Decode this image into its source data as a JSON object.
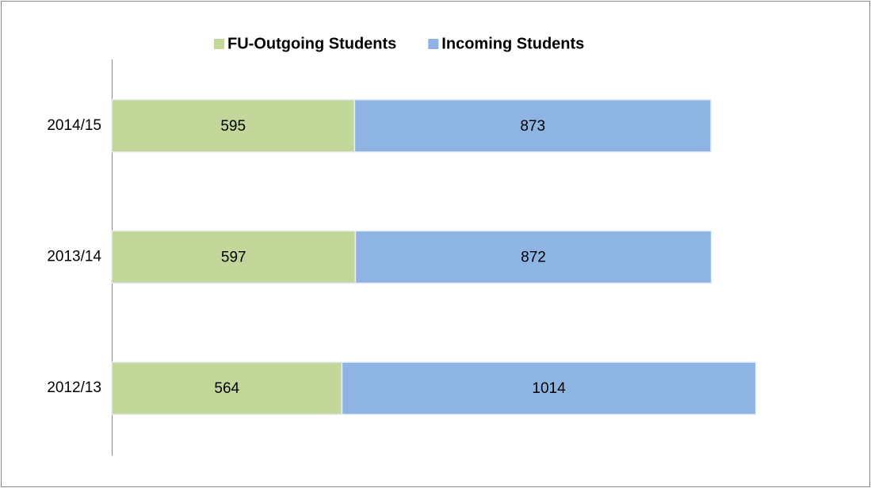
{
  "chart_data": {
    "type": "stacked-bar-horizontal",
    "categories": [
      "2014/15",
      "2013/14",
      "2012/13"
    ],
    "series": [
      {
        "name": "FU-Outgoing Students",
        "color": "#c4d79b",
        "values": [
          595,
          597,
          564
        ]
      },
      {
        "name": "Incoming Students",
        "color": "#8eb4e3",
        "values": [
          873,
          872,
          1014
        ]
      }
    ],
    "xlim": [
      0,
      1600
    ],
    "legend": "top"
  }
}
